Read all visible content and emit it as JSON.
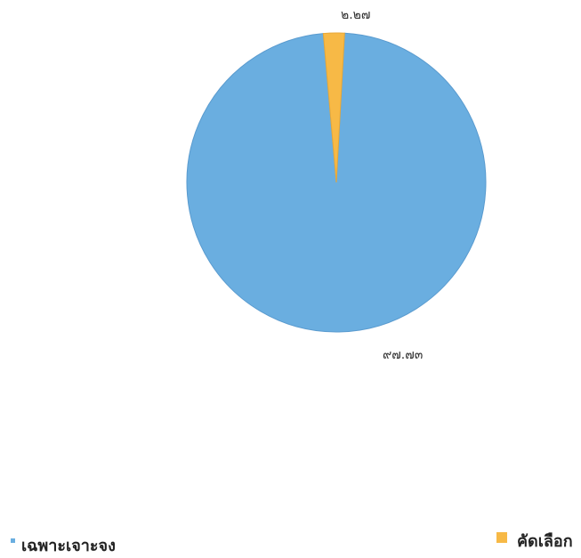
{
  "chart_data": {
    "type": "pie",
    "title": "",
    "series": [
      {
        "name": "เฉพาะเจาะจง",
        "value": 97.73,
        "label": "๙๗.๗๓",
        "color": "#6aaee0"
      },
      {
        "name": "คัดเลือก",
        "value": 2.27,
        "label": "๒.๒๗",
        "color": "#f7b946"
      }
    ],
    "start": "top",
    "direction": "clockwise",
    "grid": false,
    "legend_placement": "bottom"
  }
}
